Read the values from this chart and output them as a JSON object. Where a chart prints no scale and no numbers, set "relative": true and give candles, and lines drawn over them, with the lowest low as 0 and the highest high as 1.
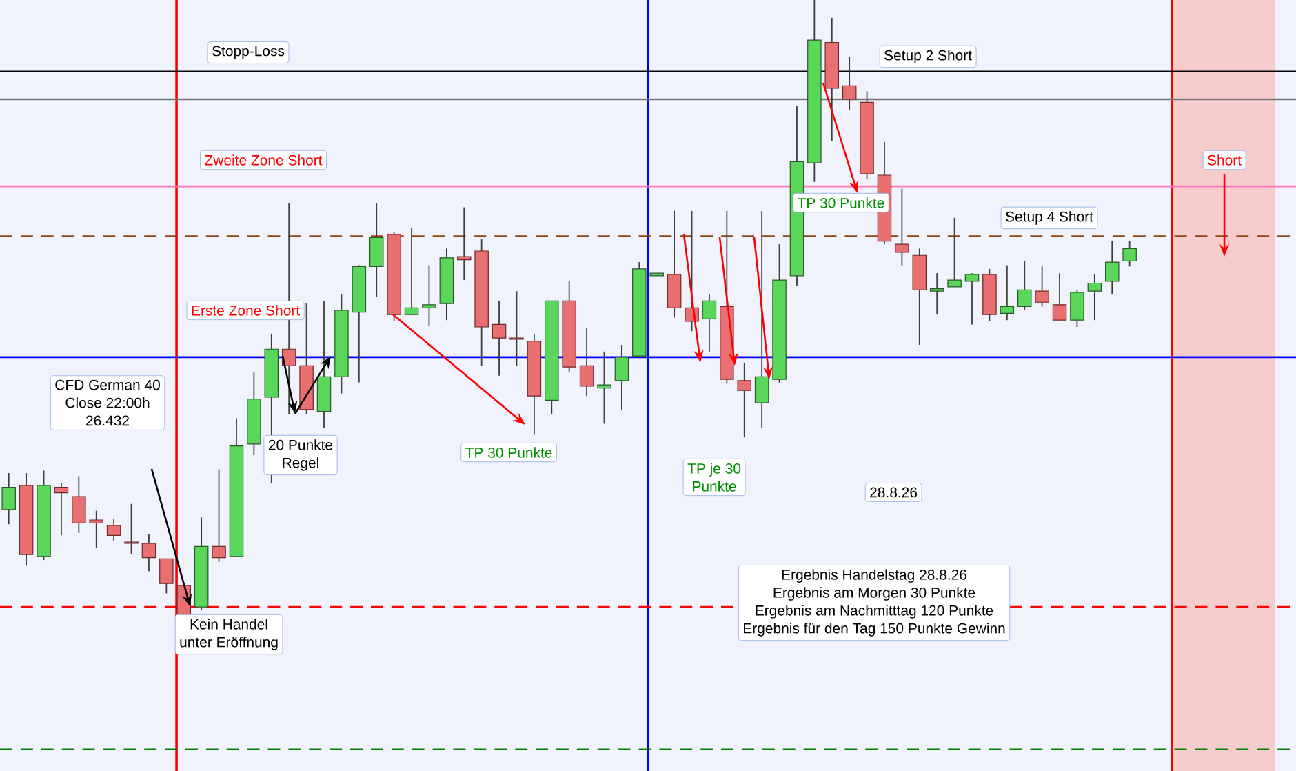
{
  "chart_data": {
    "type": "candlestick",
    "relative": true,
    "categories": [
      null,
      null,
      null,
      null,
      null,
      null,
      null,
      null,
      null,
      null,
      null,
      null,
      null,
      null,
      null,
      null,
      null,
      null,
      null,
      null,
      null,
      null,
      null,
      null,
      null,
      null,
      null,
      null,
      null,
      null,
      null,
      null,
      null,
      null,
      null,
      null,
      null,
      null,
      null,
      null,
      null,
      null,
      null,
      null,
      null,
      null,
      null,
      null,
      null,
      null,
      null,
      null,
      null,
      null,
      null,
      null,
      null,
      null,
      null,
      null,
      null,
      null,
      null,
      null,
      null,
      null,
      null,
      null,
      null,
      null,
      null,
      null,
      null,
      null
    ],
    "ohlc": [
      [
        0.174,
        0.233,
        0.15,
        0.21
      ],
      [
        0.213,
        0.233,
        0.083,
        0.101
      ],
      [
        0.098,
        0.237,
        0.092,
        0.213
      ],
      [
        0.21,
        0.217,
        0.132,
        0.201
      ],
      [
        0.195,
        0.228,
        0.136,
        0.152
      ],
      [
        0.157,
        0.172,
        0.112,
        0.152
      ],
      [
        0.148,
        0.159,
        0.123,
        0.132
      ],
      [
        0.121,
        0.183,
        0.101,
        0.119
      ],
      [
        0.119,
        0.134,
        0.074,
        0.096
      ],
      [
        0.094,
        0.094,
        0.038,
        0.054
      ],
      [
        0.051,
        0.051,
        0.0,
        0.004
      ],
      [
        0.016,
        0.161,
        0.011,
        0.114
      ],
      [
        0.114,
        0.239,
        0.089,
        0.096
      ],
      [
        0.098,
        0.322,
        0.098,
        0.277
      ],
      [
        0.28,
        0.396,
        0.262,
        0.353
      ],
      [
        0.356,
        0.459,
        0.217,
        0.434
      ],
      [
        0.434,
        0.671,
        0.329,
        0.407
      ],
      [
        0.407,
        0.508,
        0.329,
        0.336
      ],
      [
        0.333,
        0.512,
        0.306,
        0.389
      ],
      [
        0.389,
        0.523,
        0.362,
        0.497
      ],
      [
        0.494,
        0.57,
        0.38,
        0.568
      ],
      [
        0.568,
        0.671,
        0.519,
        0.615
      ],
      [
        0.62,
        0.624,
        0.479,
        0.49
      ],
      [
        0.49,
        0.631,
        0.49,
        0.501
      ],
      [
        0.501,
        0.57,
        0.472,
        0.506
      ],
      [
        0.508,
        0.597,
        0.481,
        0.582
      ],
      [
        0.584,
        0.664,
        0.546,
        0.579
      ],
      [
        0.593,
        0.613,
        0.407,
        0.47
      ],
      [
        0.474,
        0.512,
        0.391,
        0.452
      ],
      [
        0.452,
        0.528,
        0.407,
        0.45
      ],
      [
        0.447,
        0.459,
        0.295,
        0.358
      ],
      [
        0.351,
        0.512,
        0.329,
        0.512
      ],
      [
        0.512,
        0.544,
        0.396,
        0.405
      ],
      [
        0.407,
        0.468,
        0.358,
        0.374
      ],
      [
        0.371,
        0.43,
        0.313,
        0.376
      ],
      [
        0.383,
        0.441,
        0.336,
        0.421
      ],
      [
        0.423,
        0.575,
        0.423,
        0.564
      ],
      [
        0.555,
        0.557,
        0.553,
        0.555
      ],
      [
        0.555,
        0.658,
        0.485,
        0.501
      ],
      [
        0.501,
        0.658,
        0.463,
        0.479
      ],
      [
        0.483,
        0.523,
        0.43,
        0.512
      ],
      [
        0.503,
        0.658,
        0.378,
        0.385
      ],
      [
        0.383,
        0.412,
        0.291,
        0.367
      ],
      [
        0.347,
        0.658,
        0.306,
        0.389
      ],
      [
        0.385,
        0.604,
        0.38,
        0.546
      ],
      [
        0.553,
        0.828,
        0.537,
        0.738
      ],
      [
        0.736,
        1.0,
        0.705,
        0.935
      ],
      [
        0.931,
        0.971,
        0.772,
        0.857
      ],
      [
        0.861,
        0.908,
        0.821,
        0.839
      ],
      [
        0.834,
        0.852,
        0.709,
        0.718
      ],
      [
        0.716,
        0.77,
        0.604,
        0.609
      ],
      [
        0.604,
        0.694,
        0.57,
        0.591
      ],
      [
        0.586,
        0.597,
        0.441,
        0.53
      ],
      [
        0.528,
        0.557,
        0.49,
        0.532
      ],
      [
        0.535,
        0.647,
        0.535,
        0.546
      ],
      [
        0.544,
        0.557,
        0.474,
        0.555
      ],
      [
        0.555,
        0.564,
        0.479,
        0.49
      ],
      [
        0.492,
        0.57,
        0.481,
        0.503
      ],
      [
        0.503,
        0.577,
        0.497,
        0.53
      ],
      [
        0.528,
        0.568,
        0.503,
        0.51
      ],
      [
        0.506,
        0.557,
        0.479,
        0.481
      ],
      [
        0.481,
        0.53,
        0.47,
        0.526
      ],
      [
        0.528,
        0.555,
        0.481,
        0.541
      ],
      [
        0.544,
        0.609,
        0.523,
        0.575
      ],
      [
        0.577,
        0.609,
        0.568,
        0.597
      ],
      null,
      null,
      null,
      null,
      null,
      null,
      null,
      null,
      null
    ],
    "ref_lines": [
      {
        "axis": "y",
        "value": 0.884,
        "color": "#000000"
      },
      {
        "axis": "y",
        "value": 0.839,
        "color": "#777777"
      },
      {
        "axis": "y",
        "value": 0.698,
        "color": "#ff77bb"
      },
      {
        "axis": "y",
        "value": 0.617,
        "color": "#8b4513",
        "line_style": "dashed"
      },
      {
        "axis": "y",
        "value": 0.421,
        "color": "#0000ff"
      },
      {
        "axis": "y",
        "value": 0.016,
        "color": "#ff0000",
        "line_style": "dashed"
      },
      {
        "axis": "y",
        "value": -0.215,
        "color": "#008000",
        "line_style": "dashed"
      }
    ],
    "annotations": [
      "Stopp-Loss",
      "Setup 2 Short",
      "Zweite Zone Short",
      "Short",
      "TP 30 Punkte",
      "Setup 4 Short",
      "Erste Zone Short",
      "CFD German 40",
      "Close 22:00h",
      "26.432",
      "20 Punkte",
      "Regel",
      "TP 30 Punkte",
      "TP je 30",
      "Punkte",
      "28.8.26",
      "Ergebnis Handelstag 28.8.26",
      "Ergebnis am Morgen 30 Punkte",
      "Ergebnis am Nachmitttag 120 Punkte",
      "Ergebnis für den Tag 150 Punkte Gewinn",
      "Kein Handel",
      "unter Eröffnung"
    ]
  }
}
